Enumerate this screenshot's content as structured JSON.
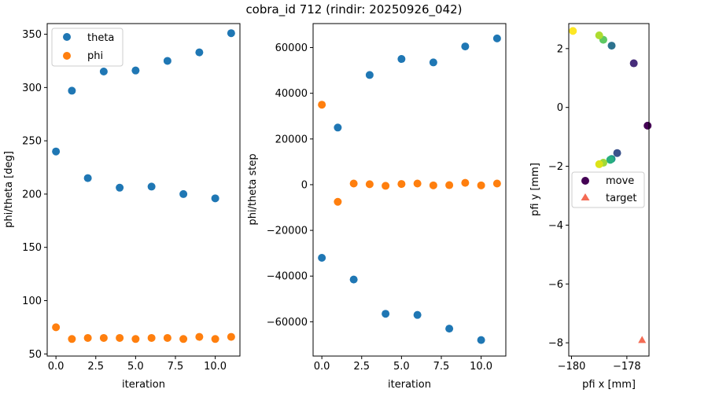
{
  "figure": {
    "title": "cobra_id 712 (rindir: 20250926_042)"
  },
  "chart_data": [
    {
      "type": "scatter",
      "title": "",
      "xlabel": "iteration",
      "ylabel": "phi/theta [deg]",
      "xlim": [
        -0.55,
        11.55
      ],
      "ylim": [
        48,
        360
      ],
      "xticks": [
        0,
        2.5,
        5,
        7.5,
        10
      ],
      "xtick_labels": [
        "0.0",
        "2.5",
        "5.0",
        "7.5",
        "10.0"
      ],
      "yticks": [
        50,
        100,
        150,
        200,
        250,
        300,
        350
      ],
      "ytick_labels": [
        "50",
        "100",
        "150",
        "200",
        "250",
        "300",
        "350"
      ],
      "legend": {
        "position": "top-left",
        "entries": [
          "theta",
          "phi"
        ]
      },
      "series": [
        {
          "name": "theta",
          "color": "#1f77b4",
          "x": [
            0,
            1,
            2,
            3,
            4,
            5,
            6,
            7,
            8,
            9,
            10,
            11
          ],
          "y": [
            240,
            297,
            215,
            315,
            206,
            316,
            207,
            325,
            200,
            333,
            196,
            351
          ]
        },
        {
          "name": "phi",
          "color": "#ff7f0e",
          "x": [
            0,
            1,
            2,
            3,
            4,
            5,
            6,
            7,
            8,
            9,
            10,
            11
          ],
          "y": [
            75,
            64,
            65,
            65,
            65,
            64,
            65,
            65,
            64,
            66,
            64,
            66
          ]
        }
      ]
    },
    {
      "type": "scatter",
      "title": "",
      "xlabel": "iteration",
      "ylabel": "phi/theta step",
      "xlim": [
        -0.55,
        11.55
      ],
      "ylim": [
        -75000,
        70500
      ],
      "xticks": [
        0,
        2.5,
        5,
        7.5,
        10
      ],
      "xtick_labels": [
        "0.0",
        "2.5",
        "5.0",
        "7.5",
        "10.0"
      ],
      "yticks": [
        -60000,
        -40000,
        -20000,
        0,
        20000,
        40000,
        60000
      ],
      "ytick_labels": [
        "−60000",
        "−40000",
        "−20000",
        "0",
        "20000",
        "40000",
        "60000"
      ],
      "series": [
        {
          "name": "theta",
          "color": "#1f77b4",
          "x": [
            0,
            1,
            2,
            3,
            4,
            5,
            6,
            7,
            8,
            9,
            10,
            11
          ],
          "y": [
            -32000,
            25000,
            -41500,
            48000,
            -56500,
            55000,
            -57000,
            53500,
            -63000,
            60500,
            -68000,
            64000
          ]
        },
        {
          "name": "phi",
          "color": "#ff7f0e",
          "x": [
            0,
            1,
            2,
            3,
            4,
            5,
            6,
            7,
            8,
            9,
            10,
            11
          ],
          "y": [
            35000,
            -7500,
            500,
            200,
            -500,
            300,
            500,
            -300,
            -200,
            800,
            -300,
            500
          ]
        }
      ]
    },
    {
      "type": "scatter",
      "title": "",
      "xlabel": "pfi x [mm]",
      "ylabel": "pfi y [mm]",
      "xlim": [
        -180.1,
        -177.2
      ],
      "ylim": [
        -8.45,
        2.85
      ],
      "xticks": [
        -180,
        -178
      ],
      "xtick_labels": [
        "−180",
        "−178"
      ],
      "yticks": [
        -8,
        -6,
        -4,
        -2,
        0,
        2
      ],
      "ytick_labels": [
        "−8",
        "−6",
        "−4",
        "−2",
        "0",
        "2"
      ],
      "legend": {
        "position": "center-left",
        "entries": [
          "move",
          "target"
        ]
      },
      "series": [
        {
          "name": "move",
          "marker": "circle",
          "legend_color": "#440154",
          "points": [
            {
              "x": -177.25,
              "y": -0.62,
              "color": "#440154"
            },
            {
              "x": -177.75,
              "y": 1.5,
              "color": "#472d7b"
            },
            {
              "x": -178.35,
              "y": -1.55,
              "color": "#3b528b"
            },
            {
              "x": -178.55,
              "y": 2.1,
              "color": "#2c728e"
            },
            {
              "x": -178.55,
              "y": -1.75,
              "color": "#21918c"
            },
            {
              "x": -178.6,
              "y": -1.78,
              "color": "#28ae80"
            },
            {
              "x": -178.85,
              "y": 2.3,
              "color": "#5ec962"
            },
            {
              "x": -178.85,
              "y": -1.88,
              "color": "#9ed93a"
            },
            {
              "x": -179.0,
              "y": 2.45,
              "color": "#addc30"
            },
            {
              "x": -179.0,
              "y": -1.93,
              "color": "#dde318"
            },
            {
              "x": -179.95,
              "y": 2.6,
              "color": "#fde725"
            }
          ]
        },
        {
          "name": "target",
          "marker": "triangle",
          "color": "#f46b54",
          "points": [
            {
              "x": -177.45,
              "y": -7.9
            }
          ]
        }
      ]
    }
  ]
}
